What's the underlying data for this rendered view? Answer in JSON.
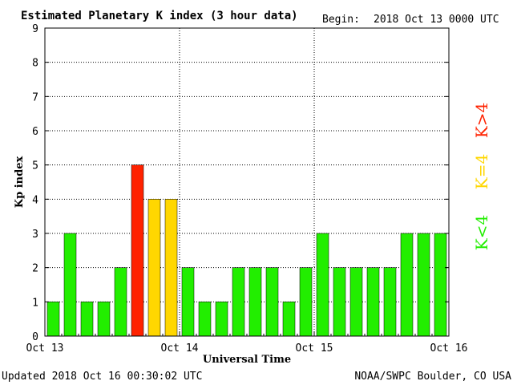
{
  "header": {
    "title": "Estimated Planetary K index (3 hour data)",
    "begin_label": "Begin:",
    "begin_value": "2018 Oct 13 0000 UTC"
  },
  "footer": {
    "updated": "Updated 2018 Oct 16 00:30:02 UTC",
    "credit": "NOAA/SWPC Boulder, CO USA"
  },
  "legend": {
    "high": "K>4",
    "equal": "K=4",
    "low": "K<4"
  },
  "colors": {
    "high": "#ff2200",
    "equal": "#ffd700",
    "low": "#22ee00",
    "grid": "#000000",
    "background": "#ffffff"
  },
  "chart_data": {
    "type": "bar",
    "title": "Estimated Planetary K index (3 hour data)",
    "xlabel": "Universal Time",
    "ylabel": "Kp index",
    "ylim": [
      0,
      9
    ],
    "yticks": [
      "0",
      "1",
      "2",
      "3",
      "4",
      "5",
      "6",
      "7",
      "8",
      "9"
    ],
    "xticks": [
      "Oct 13",
      "Oct 14",
      "Oct 15",
      "Oct 16"
    ],
    "grid": "dotted",
    "bars_per_day": 8,
    "days": 3,
    "values": [
      1,
      3,
      1,
      1,
      2,
      5,
      4,
      4,
      2,
      1,
      1,
      2,
      2,
      2,
      1,
      2,
      3,
      2,
      2,
      2,
      2,
      3,
      3,
      3
    ]
  }
}
